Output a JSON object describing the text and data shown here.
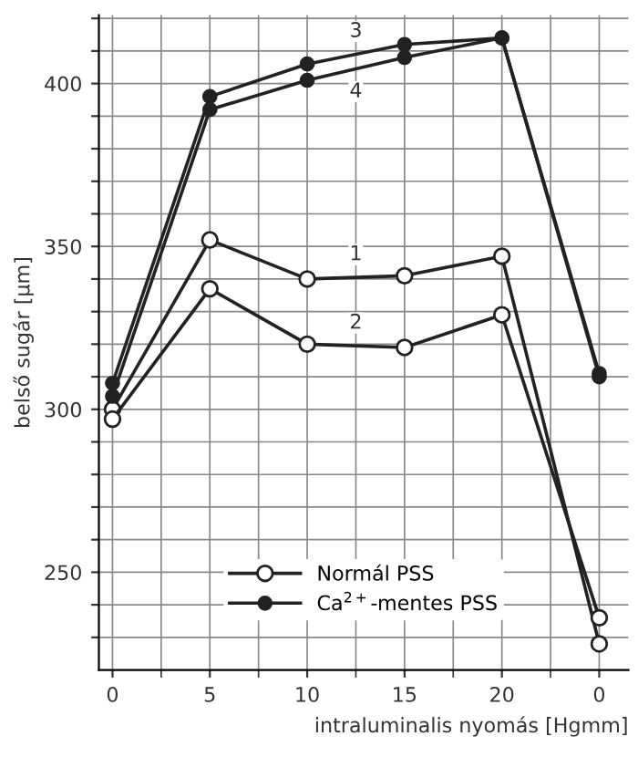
{
  "chart_data": {
    "type": "line",
    "xlabel": "intraluminalis nyomás [Hgmm]",
    "ylabel": "belső sugár [μm]",
    "categories": [
      "0",
      "5",
      "10",
      "15",
      "20",
      "0"
    ],
    "series": [
      {
        "name": "Normál PSS",
        "color": "#222222",
        "marker": "circle_open",
        "values": [
          300,
          352,
          340,
          341,
          347,
          228
        ]
      },
      {
        "color": "#222222",
        "marker": "circle_open",
        "values": [
          297,
          337,
          320,
          319,
          329,
          236
        ]
      },
      {
        "name": "Ca$^{2+}$-mentes PSS",
        "color": "#222222",
        "marker": "circle",
        "values": [
          308,
          396,
          406,
          412,
          414,
          311
        ]
      },
      {
        "color": "#222222",
        "marker": "circle",
        "values": [
          304,
          392,
          401,
          408,
          414,
          310
        ]
      }
    ],
    "annotations": [
      "1",
      "2",
      "3",
      "4"
    ],
    "ylim": [
      220,
      421
    ],
    "yticks": [
      {
        "value": 230,
        "label": null
      },
      {
        "value": 240,
        "label": null
      },
      250,
      {
        "value": 260,
        "label": null
      },
      {
        "value": 270,
        "label": null
      },
      {
        "value": 280,
        "label": null
      },
      {
        "value": 290,
        "label": null
      },
      300,
      {
        "value": 310,
        "label": null
      },
      {
        "value": 320,
        "label": null
      },
      {
        "value": 330,
        "label": null
      },
      {
        "value": 340,
        "label": null
      },
      350,
      {
        "value": 360,
        "label": null
      },
      {
        "value": 370,
        "label": null
      },
      {
        "value": 380,
        "label": null
      },
      {
        "value": 390,
        "label": null
      },
      400,
      {
        "value": 410,
        "label": null
      },
      {
        "value": 420,
        "label": null
      }
    ],
    "grid": true,
    "legend": "bottom"
  }
}
